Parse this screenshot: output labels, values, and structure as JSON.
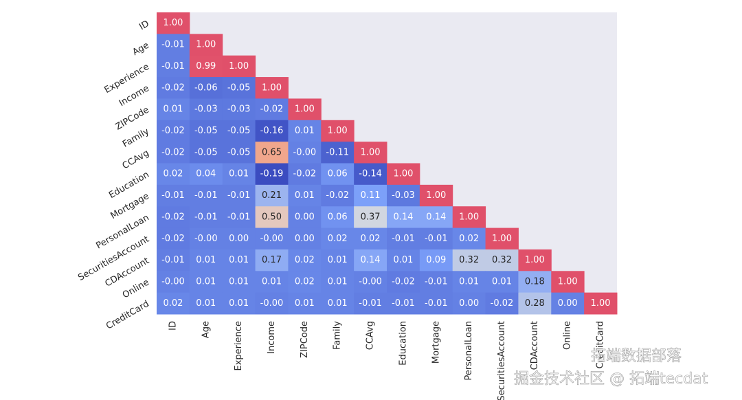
{
  "chart_data": {
    "type": "heatmap",
    "labels": [
      "ID",
      "Age",
      "Experience",
      "Income",
      "ZIPCode",
      "Family",
      "CCAvg",
      "Education",
      "Mortgage",
      "PersonalLoan",
      "SecuritiesAccount",
      "CDAccount",
      "Online",
      "CreditCard"
    ],
    "values": [
      [
        1.0
      ],
      [
        -0.01,
        1.0
      ],
      [
        -0.01,
        0.99,
        1.0
      ],
      [
        -0.02,
        -0.06,
        -0.05,
        1.0
      ],
      [
        0.01,
        -0.03,
        -0.03,
        -0.02,
        1.0
      ],
      [
        -0.02,
        -0.05,
        -0.05,
        -0.16,
        0.01,
        1.0
      ],
      [
        -0.02,
        -0.05,
        -0.05,
        0.65,
        0,
        -0.11,
        1.0
      ],
      [
        0.02,
        0.04,
        0.01,
        -0.19,
        -0.02,
        0.06,
        -0.14,
        1.0
      ],
      [
        -0.01,
        -0.01,
        -0.01,
        0.21,
        0.01,
        -0.02,
        0.11,
        -0.03,
        1.0
      ],
      [
        -0.02,
        -0.01,
        -0.01,
        0.5,
        0,
        0.06,
        0.37,
        0.14,
        0.14,
        1.0
      ],
      [
        -0.02,
        0,
        0,
        0,
        0,
        0.02,
        0.02,
        -0.01,
        -0.01,
        0.02,
        1.0
      ],
      [
        -0.01,
        0.01,
        0.01,
        0.17,
        0.02,
        0.01,
        0.14,
        0.01,
        0.09,
        0.32,
        0.32,
        1.0
      ],
      [
        0,
        0.01,
        0.01,
        0.01,
        0.02,
        0.01,
        0,
        -0.02,
        -0.01,
        0.01,
        0.01,
        0.18,
        1.0
      ],
      [
        0.02,
        0.01,
        0.01,
        0,
        0.01,
        0.01,
        -0.01,
        -0.01,
        -0.01,
        0,
        -0.02,
        0.28,
        0,
        1.0
      ]
    ],
    "value_labels": [
      [
        "1.00"
      ],
      [
        "-0.01",
        "1.00"
      ],
      [
        "-0.01",
        "0.99",
        "1.00"
      ],
      [
        "-0.02",
        "-0.06",
        "-0.05",
        "1.00"
      ],
      [
        "0.01",
        "-0.03",
        "-0.03",
        "-0.02",
        "1.00"
      ],
      [
        "-0.02",
        "-0.05",
        "-0.05",
        "-0.16",
        "0.01",
        "1.00"
      ],
      [
        "-0.02",
        "-0.05",
        "-0.05",
        "0.65",
        "-0.00",
        "-0.11",
        "1.00"
      ],
      [
        "0.02",
        "0.04",
        "0.01",
        "-0.19",
        "-0.02",
        "0.06",
        "-0.14",
        "1.00"
      ],
      [
        "-0.01",
        "-0.01",
        "-0.01",
        "0.21",
        "0.01",
        "-0.02",
        "0.11",
        "-0.03",
        "1.00"
      ],
      [
        "-0.02",
        "-0.01",
        "-0.01",
        "0.50",
        "0.00",
        "0.06",
        "0.37",
        "0.14",
        "0.14",
        "1.00"
      ],
      [
        "-0.02",
        "-0.00",
        "0.00",
        "-0.00",
        "0.00",
        "0.02",
        "0.02",
        "-0.01",
        "-0.01",
        "0.02",
        "1.00"
      ],
      [
        "-0.01",
        "0.01",
        "0.01",
        "0.17",
        "0.02",
        "0.01",
        "0.14",
        "0.01",
        "0.09",
        "0.32",
        "0.32",
        "1.00"
      ],
      [
        "-0.00",
        "0.01",
        "0.01",
        "0.01",
        "0.02",
        "0.01",
        "-0.00",
        "-0.02",
        "-0.01",
        "0.01",
        "0.01",
        "0.18",
        "1.00"
      ],
      [
        "0.02",
        "0.01",
        "0.01",
        "-0.00",
        "0.01",
        "0.01",
        "-0.01",
        "-0.01",
        "-0.01",
        "0.00",
        "-0.02",
        "0.28",
        "0.00",
        "1.00"
      ]
    ],
    "colorscale": [
      "#3b4cc0",
      "#7b9ff9",
      "#dcdddd",
      "#f49a7b",
      "#e0506a"
    ],
    "background": "#eaeaf2",
    "watermarks": [
      "拓端数据部落",
      "掘金技术社区 @ 拓端tecdat"
    ]
  }
}
